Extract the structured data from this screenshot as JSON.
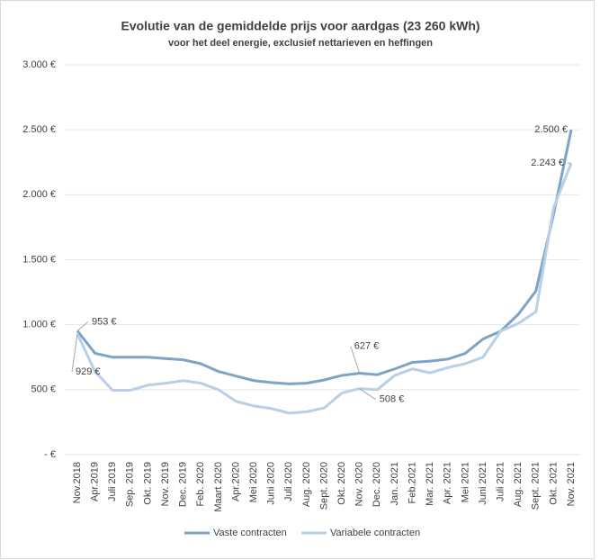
{
  "chart_data": {
    "type": "line",
    "title": "Evolutie van de gemiddelde prijs voor aardgas (23 260 kWh)",
    "subtitle": "voor het deel energie, exclusief nettarieven en heffingen",
    "categories": [
      "Nov.2018",
      "Apr.2019",
      "Juli 2019",
      "Sep. 2019",
      "Okt. 2019",
      "Nov. 2019",
      "Dec. 2019",
      "Feb. 2020",
      "Maart 2020",
      "Apr.2020",
      "Mei 2020",
      "Juni 2020",
      "Juli 2020",
      "Aug. 2020",
      "Sept. 2020",
      "Okt. 2020",
      "Nov. 2020",
      "Dec. 2020",
      "Jan. 2021",
      "Feb.2021",
      "Mar. 2021",
      "Apr. 2021",
      "Mei 2021",
      "Juni 2021",
      "Juli 2021",
      "Aug. 2021",
      "Sept. 2021",
      "Okt. 2021",
      "Nov. 2021"
    ],
    "series": [
      {
        "name": "Vaste contracten",
        "color": "#7fa3c6",
        "values": [
          953,
          780,
          750,
          750,
          750,
          740,
          730,
          700,
          640,
          605,
          570,
          555,
          545,
          550,
          575,
          610,
          627,
          615,
          660,
          710,
          720,
          735,
          780,
          890,
          950,
          1080,
          1260,
          1850,
          2500
        ],
        "value_labels": [
          "953 €",
          null,
          null,
          null,
          null,
          null,
          null,
          null,
          null,
          null,
          null,
          null,
          null,
          null,
          null,
          null,
          "627 €",
          null,
          null,
          null,
          null,
          null,
          null,
          null,
          null,
          null,
          null,
          null,
          "2.500 €"
        ]
      },
      {
        "name": "Variabele contracten",
        "color": "#b9cfe7",
        "values": [
          929,
          640,
          495,
          495,
          535,
          550,
          570,
          550,
          500,
          410,
          375,
          355,
          320,
          330,
          360,
          475,
          508,
          500,
          610,
          660,
          630,
          670,
          700,
          750,
          950,
          1010,
          1100,
          1900,
          2243
        ],
        "value_labels": [
          "929 €",
          null,
          null,
          null,
          null,
          null,
          null,
          null,
          null,
          null,
          null,
          null,
          null,
          null,
          null,
          null,
          "508 €",
          null,
          null,
          null,
          null,
          null,
          null,
          null,
          null,
          null,
          null,
          null,
          "2.243 €"
        ]
      }
    ],
    "ylim": [
      0,
      3000
    ],
    "yticks": [
      {
        "value": 0,
        "label": "-  €"
      },
      {
        "value": 500,
        "label": "500 €"
      },
      {
        "value": 1000,
        "label": "1.000 €"
      },
      {
        "value": 1500,
        "label": "1.500 €"
      },
      {
        "value": 2000,
        "label": "2.000 €"
      },
      {
        "value": 2500,
        "label": "2.500 €"
      },
      {
        "value": 3000,
        "label": "3.000 €"
      }
    ],
    "grid": true,
    "legend": "bottom"
  }
}
